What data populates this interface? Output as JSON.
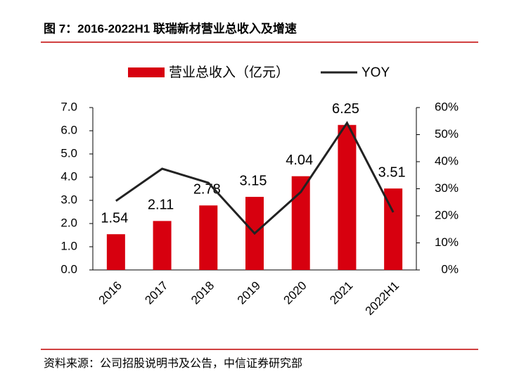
{
  "chart_data": {
    "type": "bar-line",
    "title": "图 7：2016-2022H1 联瑞新材营业总收入及增速",
    "source": "资料来源：公司招股说明书及公告，中信证券研究部",
    "categories": [
      "2016",
      "2017",
      "2018",
      "2019",
      "2020",
      "2021",
      "2022H1"
    ],
    "series": [
      {
        "name": "营业总收入（亿元）",
        "type": "bar",
        "color": "#d7000f",
        "axis": "y",
        "values": [
          1.54,
          2.11,
          2.78,
          3.15,
          4.04,
          6.25,
          3.51
        ]
      },
      {
        "name": "YOY",
        "type": "line",
        "color": "#222222",
        "axis": "y2",
        "values": [
          25.5,
          37.4,
          32.2,
          13.5,
          28.8,
          54.3,
          21.3
        ]
      }
    ],
    "ylim": [
      0,
      7
    ],
    "yticks": [
      {
        "value": 0,
        "label": "0.0"
      },
      {
        "value": 1,
        "label": "1.0"
      },
      {
        "value": 2,
        "label": "2.0"
      },
      {
        "value": 3,
        "label": "3.0"
      },
      {
        "value": 4,
        "label": "4.0"
      },
      {
        "value": 5,
        "label": "5.0"
      },
      {
        "value": 6,
        "label": "6.0"
      },
      {
        "value": 7,
        "label": "7.0"
      }
    ],
    "y2lim": [
      0,
      60
    ],
    "y2ticks": [
      {
        "value": 0,
        "label": "0%"
      },
      {
        "value": 10,
        "label": "10%"
      },
      {
        "value": 20,
        "label": "20%"
      },
      {
        "value": 30,
        "label": "30%"
      },
      {
        "value": 40,
        "label": "40%"
      },
      {
        "value": 50,
        "label": "50%"
      },
      {
        "value": 60,
        "label": "60%"
      }
    ],
    "grid": false
  }
}
